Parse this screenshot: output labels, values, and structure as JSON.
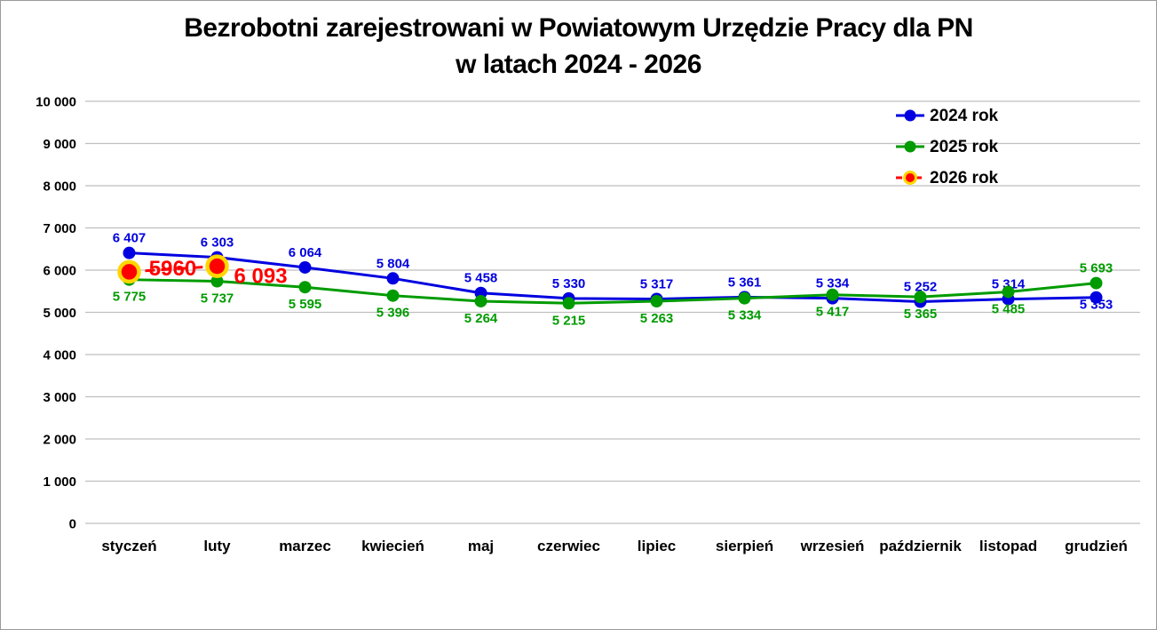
{
  "title": {
    "line1": "Bezrobotni zarejestrowani w Powiatowym Urzędzie Pracy dla PN",
    "line2": "w latach 2024 - 2026"
  },
  "chart_data": {
    "type": "line",
    "title": "Bezrobotni zarejestrowani w Powiatowym Urzędzie Pracy dla PN w latach 2024 - 2026",
    "categories": [
      "styczeń",
      "luty",
      "marzec",
      "kwiecień",
      "maj",
      "czerwiec",
      "lipiec",
      "sierpień",
      "wrzesień",
      "październik",
      "listopad",
      "grudzień"
    ],
    "series": [
      {
        "id": "2024-rok",
        "name": "2024 rok",
        "color": "#0000E0",
        "dashed": false,
        "values": [
          6407,
          6303,
          6064,
          5804,
          5458,
          5330,
          5317,
          5361,
          5334,
          5252,
          5314,
          5353
        ],
        "labels": [
          "6 407",
          "6 303",
          "6 064",
          "5 804",
          "5 458",
          "5 330",
          "5 317",
          "5 361",
          "5 334",
          "5 252",
          "5 314",
          "5 353"
        ],
        "label_pos": [
          "above",
          "above",
          "above",
          "above",
          "above",
          "above",
          "above",
          "above",
          "above",
          "above",
          "above",
          {
            "dx": 0,
            "dy": 13,
            "anchor": "middle"
          }
        ]
      },
      {
        "id": "2025-rok",
        "name": "2025 rok",
        "color": "#009B00",
        "dashed": false,
        "values": [
          5775,
          5737,
          5595,
          5396,
          5264,
          5215,
          5263,
          5334,
          5417,
          5365,
          5485,
          5693
        ],
        "labels": [
          "5 775",
          "5 737",
          "5 595",
          "5 396",
          "5 264",
          "5 215",
          "5 263",
          "5 334",
          "5 417",
          "5 365",
          "5 485",
          "5 693"
        ],
        "label_pos": [
          "below",
          "below",
          "below",
          "below",
          "below",
          "below",
          "below",
          "below",
          "below",
          "below",
          "below",
          "above"
        ]
      },
      {
        "id": "2026-rok",
        "name": "2026 rok",
        "color": "#FF0000",
        "marker_ring": "#FFD700",
        "dashed": true,
        "big_labels": true,
        "values": [
          5960,
          6093,
          null,
          null,
          null,
          null,
          null,
          null,
          null,
          null,
          null,
          null
        ],
        "labels": [
          "5960",
          "6 093",
          null,
          null,
          null,
          null,
          null,
          null,
          null,
          null,
          null,
          null
        ],
        "label_pos": [
          {
            "dx": 49,
            "dy": 4,
            "anchor": "middle"
          },
          {
            "dx": 19,
            "dy": 19,
            "anchor": "start"
          },
          null,
          null,
          null,
          null,
          null,
          null,
          null,
          null,
          null,
          null
        ]
      }
    ],
    "ylim": [
      0,
      10000
    ],
    "ytick_step": 1000,
    "ytick_labels": [
      "0",
      "1 000",
      "2 000",
      "3 000",
      "4 000",
      "5 000",
      "6 000",
      "7 000",
      "8 000",
      "9 000",
      "10 000"
    ],
    "grid": "horizontal",
    "grid_color": "#BFBFBF",
    "legend_position": "top-right",
    "xlabel": "",
    "ylabel": ""
  }
}
